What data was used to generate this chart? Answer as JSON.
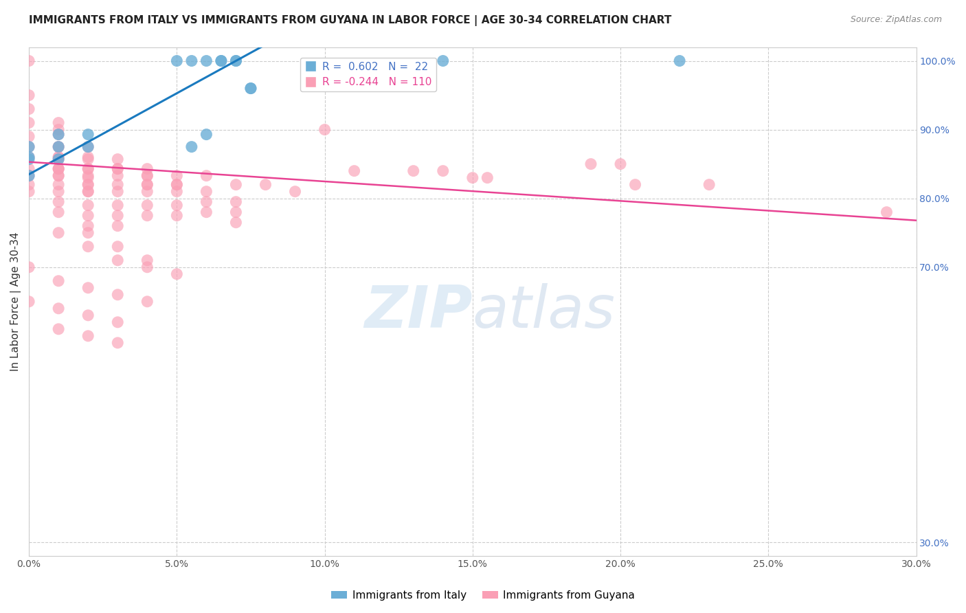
{
  "title": "IMMIGRANTS FROM ITALY VS IMMIGRANTS FROM GUYANA IN LABOR FORCE | AGE 30-34 CORRELATION CHART",
  "source": "Source: ZipAtlas.com",
  "ylabel": "In Labor Force | Age 30-34",
  "legend_italy": "Immigrants from Italy",
  "legend_guyana": "Immigrants from Guyana",
  "italy_R": 0.602,
  "italy_N": 22,
  "guyana_R": -0.244,
  "guyana_N": 110,
  "xlim": [
    0.0,
    0.3
  ],
  "ylim": [
    0.28,
    1.02
  ],
  "xticks": [
    0.0,
    0.05,
    0.1,
    0.15,
    0.2,
    0.25,
    0.3
  ],
  "xtick_labels": [
    "0.0%",
    "5.0%",
    "10.0%",
    "15.0%",
    "20.0%",
    "25.0%",
    "30.0%"
  ],
  "yticks_right": [
    0.3,
    0.7,
    0.8,
    0.9,
    1.0
  ],
  "ytick_labels_right": [
    "30.0%",
    "70.0%",
    "80.0%",
    "90.0%",
    "100.0%"
  ],
  "color_italy": "#6baed6",
  "color_guyana": "#fa9fb5",
  "color_line_italy": "#1a7abf",
  "color_line_guyana": "#e84393",
  "watermark": "ZIPatlas",
  "italy_line_x0": 0.0,
  "italy_line_y0": 0.835,
  "italy_line_x1": 0.07,
  "italy_line_y1": 1.0,
  "guyana_line_x0": 0.0,
  "guyana_line_x1": 0.3,
  "guyana_line_y0": 0.853,
  "guyana_line_y1": 0.768,
  "italy_x": [
    0.0,
    0.0,
    0.0,
    0.0,
    0.01,
    0.01,
    0.01,
    0.02,
    0.02,
    0.05,
    0.055,
    0.06,
    0.065,
    0.065,
    0.07,
    0.07,
    0.075,
    0.075,
    0.14,
    0.22,
    0.055,
    0.06
  ],
  "italy_y": [
    0.833,
    0.857,
    0.875,
    0.86,
    0.857,
    0.875,
    0.893,
    0.893,
    0.875,
    1.0,
    1.0,
    1.0,
    1.0,
    1.0,
    1.0,
    1.0,
    0.96,
    0.96,
    1.0,
    1.0,
    0.875,
    0.893
  ],
  "guyana_x": [
    0.0,
    0.0,
    0.0,
    0.0,
    0.0,
    0.0,
    0.0,
    0.0,
    0.0,
    0.0,
    0.01,
    0.01,
    0.01,
    0.01,
    0.01,
    0.01,
    0.01,
    0.01,
    0.01,
    0.01,
    0.01,
    0.01,
    0.02,
    0.02,
    0.02,
    0.02,
    0.02,
    0.02,
    0.02,
    0.02,
    0.02,
    0.03,
    0.03,
    0.03,
    0.03,
    0.03,
    0.03,
    0.04,
    0.04,
    0.04,
    0.04,
    0.04,
    0.05,
    0.05,
    0.05,
    0.05,
    0.06,
    0.06,
    0.06,
    0.07,
    0.07,
    0.07,
    0.08,
    0.09,
    0.1,
    0.11,
    0.13,
    0.14,
    0.15,
    0.155,
    0.19,
    0.2,
    0.205,
    0.23,
    0.29,
    0.0,
    0.0,
    0.0,
    0.01,
    0.01,
    0.01,
    0.01,
    0.01,
    0.02,
    0.02,
    0.02,
    0.02,
    0.02,
    0.03,
    0.03,
    0.03,
    0.04,
    0.04,
    0.04,
    0.05,
    0.05,
    0.06,
    0.07,
    0.02,
    0.03,
    0.04,
    0.01,
    0.02,
    0.03,
    0.04,
    0.05,
    0.01,
    0.02,
    0.03,
    0.04,
    0.01,
    0.02,
    0.03,
    0.01,
    0.02,
    0.03
  ],
  "guyana_y": [
    0.95,
    0.93,
    0.91,
    0.89,
    0.875,
    0.86,
    0.843,
    0.833,
    0.82,
    0.81,
    0.9,
    0.875,
    0.86,
    0.843,
    0.833,
    0.82,
    0.81,
    0.795,
    0.78,
    0.86,
    0.843,
    0.833,
    0.875,
    0.86,
    0.843,
    0.833,
    0.82,
    0.81,
    0.79,
    0.775,
    0.76,
    0.843,
    0.82,
    0.81,
    0.79,
    0.775,
    0.76,
    0.833,
    0.82,
    0.81,
    0.79,
    0.775,
    0.82,
    0.81,
    0.79,
    0.775,
    0.81,
    0.795,
    0.78,
    0.795,
    0.78,
    0.765,
    0.82,
    0.81,
    0.9,
    0.84,
    0.84,
    0.84,
    0.83,
    0.83,
    0.85,
    0.85,
    0.82,
    0.82,
    0.78,
    1.0,
    0.65,
    0.7,
    0.91,
    0.893,
    0.875,
    0.857,
    0.843,
    0.857,
    0.843,
    0.83,
    0.82,
    0.81,
    0.857,
    0.843,
    0.833,
    0.843,
    0.833,
    0.82,
    0.833,
    0.82,
    0.833,
    0.82,
    0.75,
    0.73,
    0.71,
    0.75,
    0.73,
    0.71,
    0.7,
    0.69,
    0.68,
    0.67,
    0.66,
    0.65,
    0.64,
    0.63,
    0.62,
    0.61,
    0.6,
    0.59
  ]
}
